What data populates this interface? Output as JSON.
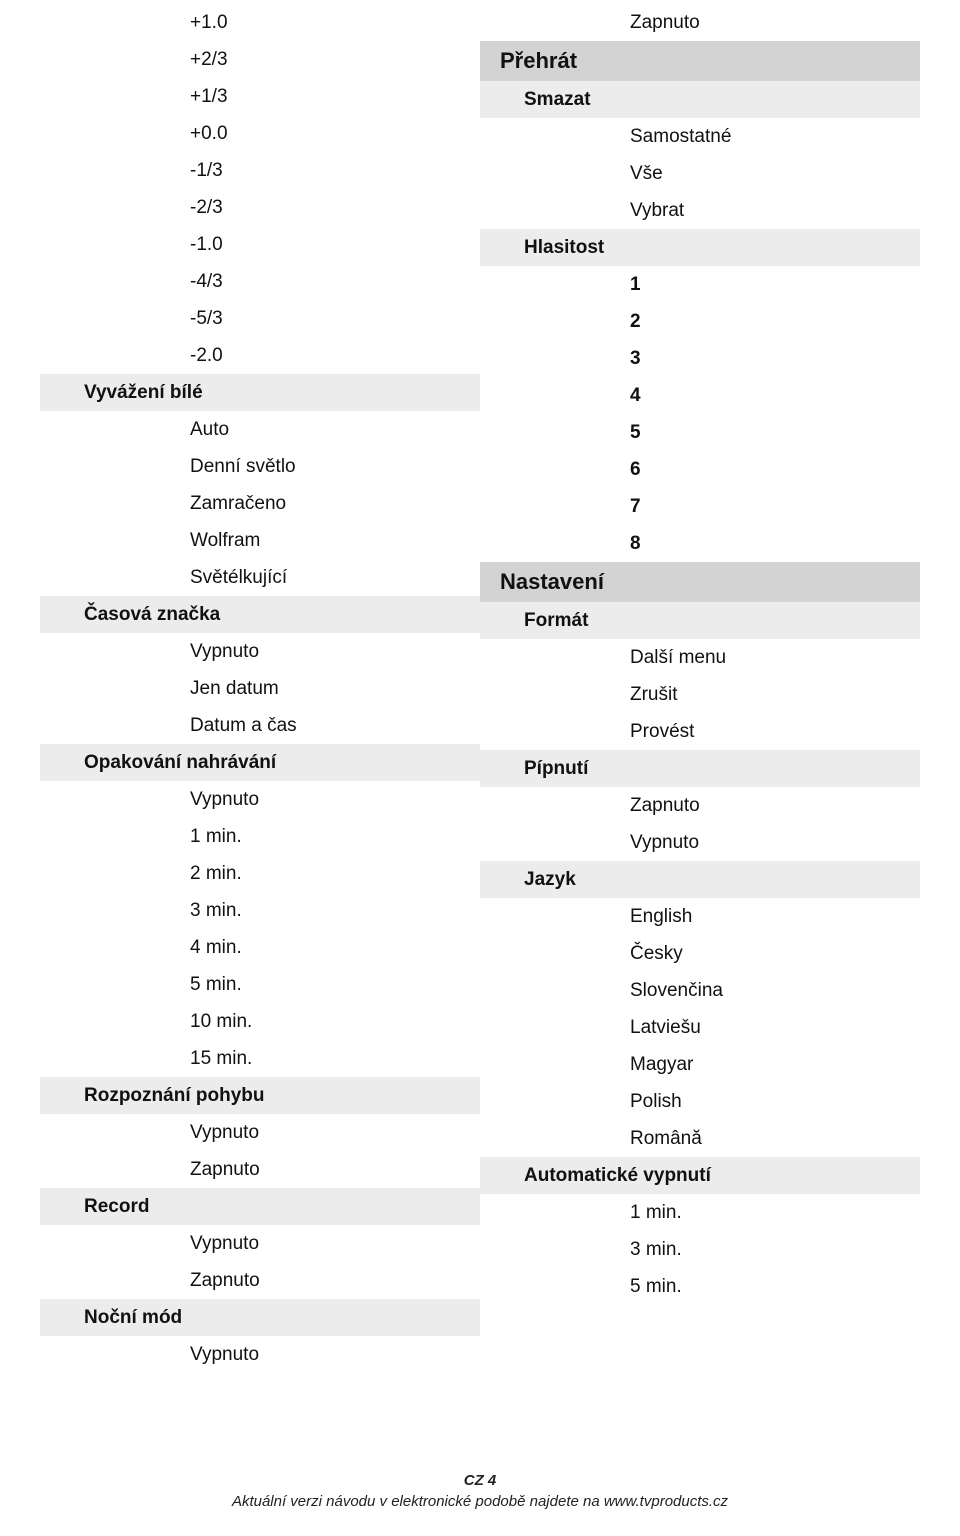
{
  "left": [
    {
      "cls": "item pad-3 bg-none",
      "text": "+1.0"
    },
    {
      "cls": "item pad-3 bg-none",
      "text": "+2/3"
    },
    {
      "cls": "item pad-3 bg-none",
      "text": "+1/3"
    },
    {
      "cls": "item pad-3 bg-none",
      "text": "+0.0"
    },
    {
      "cls": "item pad-3 bg-none",
      "text": "-1/3"
    },
    {
      "cls": "item pad-3 bg-none",
      "text": "-2/3"
    },
    {
      "cls": "item pad-3 bg-none",
      "text": "-1.0"
    },
    {
      "cls": "item pad-3 bg-none",
      "text": "-4/3"
    },
    {
      "cls": "item pad-3 bg-none",
      "text": "-5/3"
    },
    {
      "cls": "item pad-3 bg-none",
      "text": "-2.0"
    },
    {
      "cls": "h3 pad-1 bg-light",
      "text": "Vyvážení bílé"
    },
    {
      "cls": "item pad-3 bg-none",
      "text": "Auto"
    },
    {
      "cls": "item pad-3 bg-none",
      "text": "Denní světlo"
    },
    {
      "cls": "item pad-3 bg-none",
      "text": "Zamračeno"
    },
    {
      "cls": "item pad-3 bg-none",
      "text": "Wolfram"
    },
    {
      "cls": "item pad-3 bg-none",
      "text": "Světélkující"
    },
    {
      "cls": "h3 pad-1 bg-light",
      "text": "Časová značka"
    },
    {
      "cls": "item pad-3 bg-none",
      "text": "Vypnuto"
    },
    {
      "cls": "item pad-3 bg-none",
      "text": "Jen datum"
    },
    {
      "cls": "item pad-3 bg-none",
      "text": "Datum a čas"
    },
    {
      "cls": "h3 pad-1 bg-light",
      "text": "Opakování nahrávání"
    },
    {
      "cls": "item pad-3 bg-none",
      "text": "Vypnuto"
    },
    {
      "cls": "item pad-3 bg-none",
      "text": "1 min."
    },
    {
      "cls": "item pad-3 bg-none",
      "text": "2 min."
    },
    {
      "cls": "item pad-3 bg-none",
      "text": "3 min."
    },
    {
      "cls": "item pad-3 bg-none",
      "text": "4 min."
    },
    {
      "cls": "item pad-3 bg-none",
      "text": "5 min."
    },
    {
      "cls": "item pad-3 bg-none",
      "text": "10 min."
    },
    {
      "cls": "item pad-3 bg-none",
      "text": "15 min."
    },
    {
      "cls": "h3 pad-1 bg-light",
      "text": "Rozpoznání pohybu"
    },
    {
      "cls": "item pad-3 bg-none",
      "text": "Vypnuto"
    },
    {
      "cls": "item pad-3 bg-none",
      "text": "Zapnuto"
    },
    {
      "cls": "h3 pad-1 bg-light",
      "text": "Record"
    },
    {
      "cls": "item pad-3 bg-none",
      "text": "Vypnuto"
    },
    {
      "cls": "item pad-3 bg-none",
      "text": "Zapnuto"
    },
    {
      "cls": "h3 pad-1 bg-light",
      "text": "Noční mód"
    },
    {
      "cls": "item pad-3 bg-none",
      "text": "Vypnuto"
    }
  ],
  "right": [
    {
      "cls": "item pad-3 bg-none",
      "text": "Zapnuto"
    },
    {
      "cls": "h1 pad-0 bg-dark",
      "text": "Přehrát"
    },
    {
      "cls": "h2 pad-1 bg-light",
      "text": "Smazat"
    },
    {
      "cls": "item pad-3 bg-none",
      "text": "Samostatné"
    },
    {
      "cls": "item pad-3 bg-none",
      "text": "Vše"
    },
    {
      "cls": "item pad-3 bg-none",
      "text": "Vybrat"
    },
    {
      "cls": "h2 pad-1 bg-light",
      "text": "Hlasitost"
    },
    {
      "cls": "bold-item pad-3 bg-none",
      "text": "1"
    },
    {
      "cls": "bold-item pad-3 bg-none",
      "text": "2"
    },
    {
      "cls": "bold-item pad-3 bg-none",
      "text": "3"
    },
    {
      "cls": "bold-item pad-3 bg-none",
      "text": "4"
    },
    {
      "cls": "bold-item pad-3 bg-none",
      "text": "5"
    },
    {
      "cls": "bold-item pad-3 bg-none",
      "text": "6"
    },
    {
      "cls": "bold-item pad-3 bg-none",
      "text": "7"
    },
    {
      "cls": "bold-item pad-3 bg-none",
      "text": "8"
    },
    {
      "cls": "h1 pad-0 bg-dark",
      "text": "Nastavení"
    },
    {
      "cls": "h2 pad-1 bg-light",
      "text": "Formát"
    },
    {
      "cls": "item pad-3 bg-none",
      "text": "Další menu"
    },
    {
      "cls": "item pad-3 bg-none",
      "text": "Zrušit"
    },
    {
      "cls": "item pad-3 bg-none",
      "text": "Provést"
    },
    {
      "cls": "h2 pad-1 bg-light",
      "text": "Pípnutí"
    },
    {
      "cls": "item pad-3 bg-none",
      "text": "Zapnuto"
    },
    {
      "cls": "item pad-3 bg-none",
      "text": "Vypnuto"
    },
    {
      "cls": "h2 pad-1 bg-light",
      "text": "Jazyk"
    },
    {
      "cls": "item pad-3 bg-none",
      "text": "English"
    },
    {
      "cls": "item pad-3 bg-none",
      "text": "Česky"
    },
    {
      "cls": "item pad-3 bg-none",
      "text": "Slovenčina"
    },
    {
      "cls": "item pad-3 bg-none",
      "text": "Latviešu"
    },
    {
      "cls": "item pad-3 bg-none",
      "text": "Magyar"
    },
    {
      "cls": "item pad-3 bg-none",
      "text": "Polish"
    },
    {
      "cls": "item pad-3 bg-none",
      "text": "Română"
    },
    {
      "cls": "h2 pad-1 bg-light",
      "text": "Automatické vypnutí"
    },
    {
      "cls": "item pad-3 bg-none",
      "text": "1 min."
    },
    {
      "cls": "item pad-3 bg-none",
      "text": "3 min."
    },
    {
      "cls": "item pad-3 bg-none",
      "text": "5 min."
    }
  ],
  "footer": {
    "page": "CZ 4",
    "note": "Aktuální verzi návodu v elektronické podobě najdete na www.tvproducts.cz"
  }
}
